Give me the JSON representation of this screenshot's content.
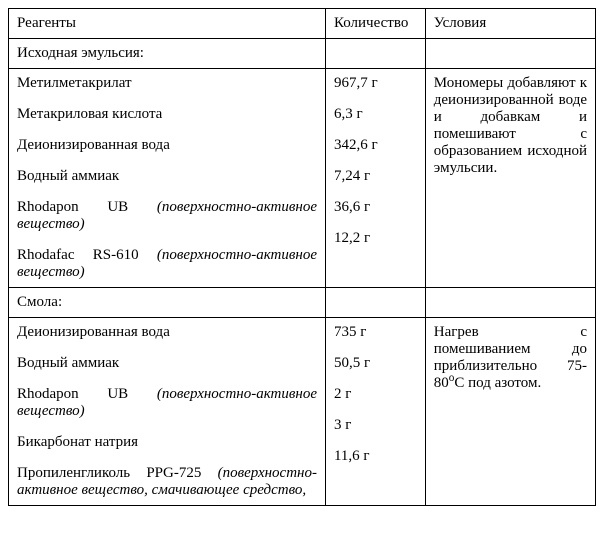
{
  "headers": {
    "reagents": "Реагенты",
    "quantity": "Количество",
    "conditions": "Условия"
  },
  "section1": {
    "title": "Исходная эмульсия:",
    "reagents": {
      "r0": "Метилметакрилат",
      "r1": "Метакриловая кислота",
      "r2": "Деионизированная вода",
      "r3": "Водный аммиак",
      "r4a": "Rhodapon UB ",
      "r4b": "(поверхностно-активное вещество)",
      "r5a": "Rhodafac RS-610 ",
      "r5b": "(поверхностно-активное вещество)"
    },
    "qty": {
      "q0": "967,7 г",
      "q1": "6,3 г",
      "q2": "342,6 г",
      "q3": "7,24 г",
      "q4": "36,6 г",
      "q5": "12,2 г"
    },
    "conditions": "Мономеры добавляют к деионизированной воде и добавкам и помешивают с образованием исходной эмульсии."
  },
  "section2": {
    "title": "Смола:",
    "reagents": {
      "r0": "Деионизированная вода",
      "r1": "Водный аммиак",
      "r2a": "Rhodapon UB ",
      "r2b": "(поверхностно-активное вещество)",
      "r3": "Бикарбонат натрия",
      "r4a": "Пропиленгликоль PPG-725 ",
      "r4b": "(поверхностно-активное вещество, смачивающее средство,"
    },
    "qty": {
      "q0": "735 г",
      "q1": "50,5 г",
      "q2": "2 г",
      "q3": "3 г",
      "q4": "11,6 г"
    },
    "conditions_a": "Нагрев с помешиванием до приблизительно 75-80",
    "conditions_b": "о",
    "conditions_c": "С под азотом."
  }
}
